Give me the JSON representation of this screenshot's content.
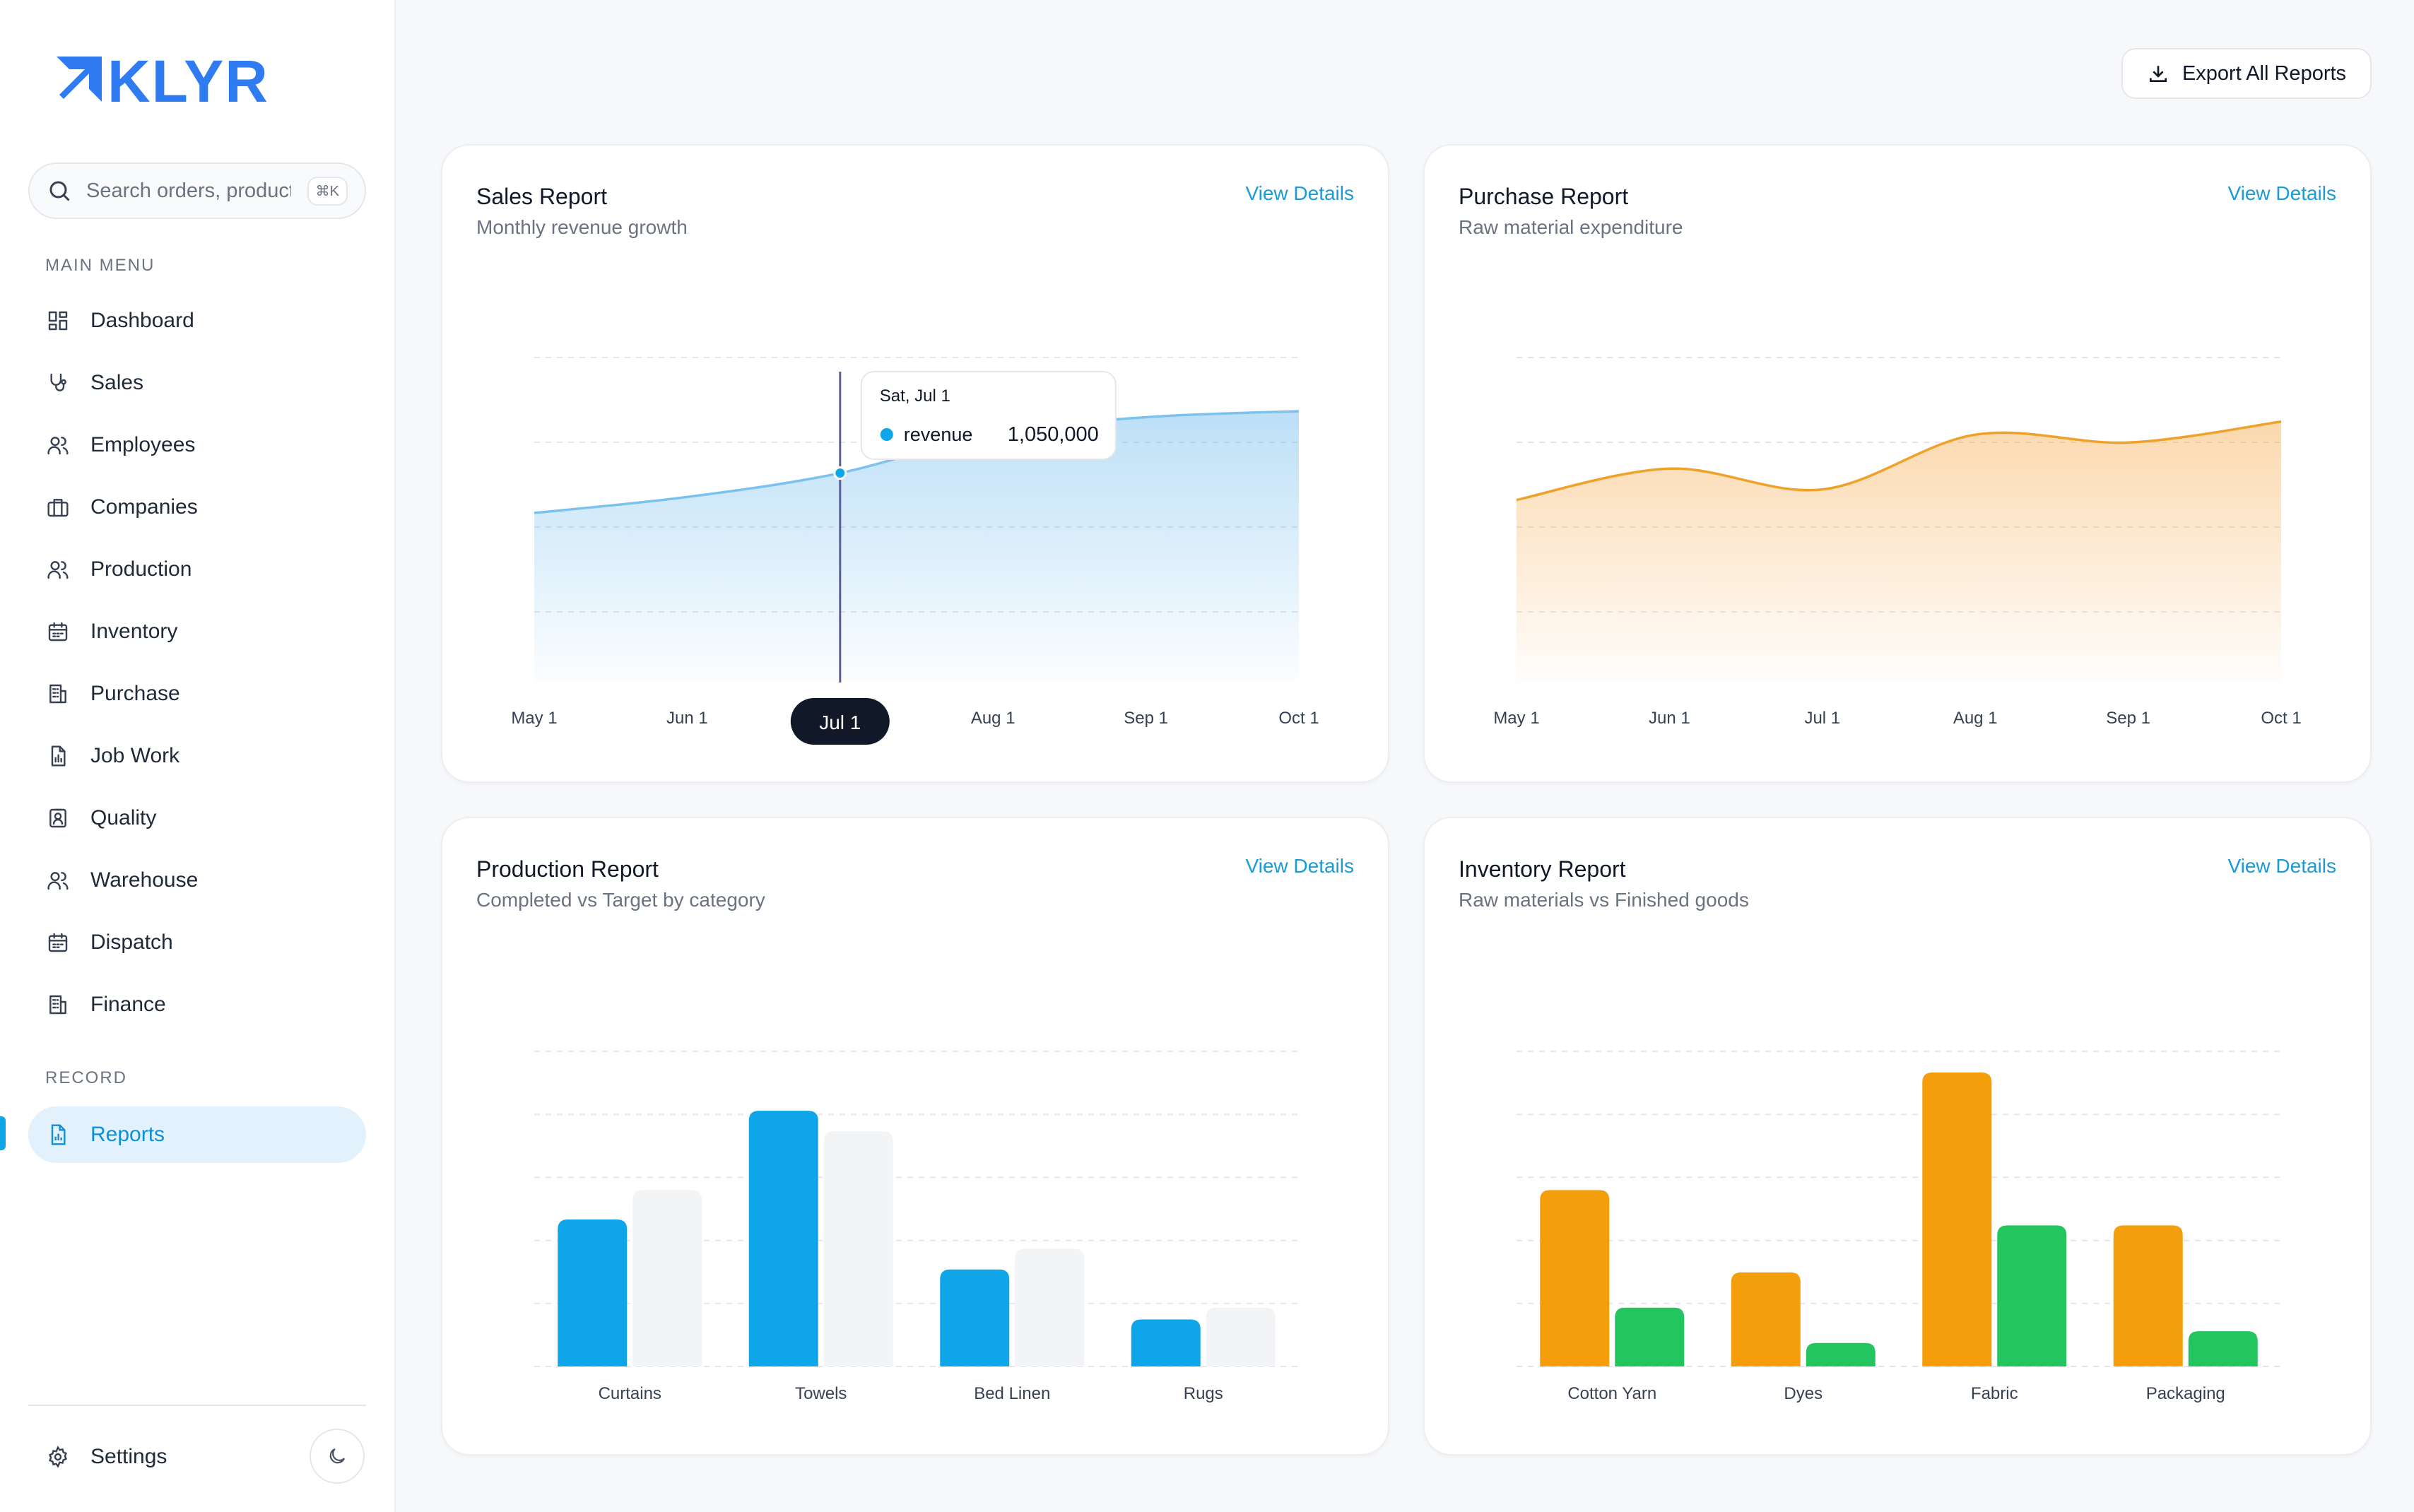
{
  "app": {
    "brand": "KLYR"
  },
  "search": {
    "placeholder": "Search orders, products...",
    "shortcut": "⌘K"
  },
  "sidebar": {
    "main_menu_label": "MAIN MENU",
    "items": [
      {
        "label": "Dashboard",
        "icon": "dashboard-icon"
      },
      {
        "label": "Sales",
        "icon": "stethoscope-icon"
      },
      {
        "label": "Employees",
        "icon": "users-icon"
      },
      {
        "label": "Companies",
        "icon": "briefcase-icon"
      },
      {
        "label": "Production",
        "icon": "users-icon"
      },
      {
        "label": "Inventory",
        "icon": "calendar-icon"
      },
      {
        "label": "Purchase",
        "icon": "building-icon"
      },
      {
        "label": "Job Work",
        "icon": "file-chart-icon"
      },
      {
        "label": "Quality",
        "icon": "badge-icon"
      },
      {
        "label": "Warehouse",
        "icon": "users-icon"
      },
      {
        "label": "Dispatch",
        "icon": "calendar-icon"
      },
      {
        "label": "Finance",
        "icon": "building-icon"
      }
    ],
    "record_label": "RECORD",
    "record_items": [
      {
        "label": "Reports",
        "icon": "file-chart-icon",
        "active": true
      }
    ],
    "settings_label": "Settings"
  },
  "header": {
    "export_label": "Export All Reports"
  },
  "cards": {
    "sales": {
      "title": "Sales Report",
      "subtitle": "Monthly revenue growth",
      "link": "View Details"
    },
    "purchase": {
      "title": "Purchase Report",
      "subtitle": "Raw material expenditure",
      "link": "View Details"
    },
    "production": {
      "title": "Production Report",
      "subtitle": "Completed vs Target by category",
      "link": "View Details"
    },
    "inventory": {
      "title": "Inventory Report",
      "subtitle": "Raw materials vs Finished goods",
      "link": "View Details"
    }
  },
  "colors": {
    "brand": "#2f7bf2",
    "accent": "#0ea5e9",
    "orange": "#f59e0b",
    "green": "#22c55e",
    "target": "#f3f4f6"
  },
  "chart_data": [
    {
      "id": "sales",
      "type": "area",
      "x": [
        "May 1",
        "Jun 1",
        "Jul 1",
        "Aug 1",
        "Sep 1",
        "Oct 1"
      ],
      "series": [
        {
          "name": "revenue",
          "values": [
            850000,
            930000,
            1050000,
            1250000,
            1330000,
            1360000
          ]
        }
      ],
      "ylim": [
        0,
        1700000
      ],
      "grid": true,
      "tooltip": {
        "date": "Sat, Jul 1",
        "series": "revenue",
        "value": "1,050,000",
        "index": 2
      },
      "active_tick": "Jul  1"
    },
    {
      "id": "purchase",
      "type": "area",
      "x": [
        "May 1",
        "Jun 1",
        "Jul 1",
        "Aug 1",
        "Sep 1",
        "Oct 1"
      ],
      "series": [
        {
          "name": "",
          "values": [
            700,
            820,
            740,
            950,
            920,
            1000
          ]
        }
      ],
      "ylim": [
        0,
        1300
      ],
      "grid": true
    },
    {
      "id": "production",
      "type": "bar",
      "categories": [
        "Curtains",
        "Towels",
        "Bed Linen",
        "Rugs"
      ],
      "series": [
        {
          "name": "",
          "values": [
            50,
            87,
            33,
            16
          ]
        },
        {
          "name": "",
          "values": [
            60,
            80,
            40,
            20
          ]
        }
      ],
      "ylim": [
        0,
        100
      ],
      "grid": true
    },
    {
      "id": "inventory",
      "type": "bar",
      "categories": [
        "Cotton Yarn",
        "Dyes",
        "Fabric",
        "Packaging"
      ],
      "series": [
        {
          "name": "",
          "values": [
            60,
            32,
            100,
            48
          ]
        },
        {
          "name": "",
          "values": [
            20,
            8,
            48,
            12
          ]
        }
      ],
      "ylim": [
        0,
        100
      ],
      "grid": true
    }
  ]
}
